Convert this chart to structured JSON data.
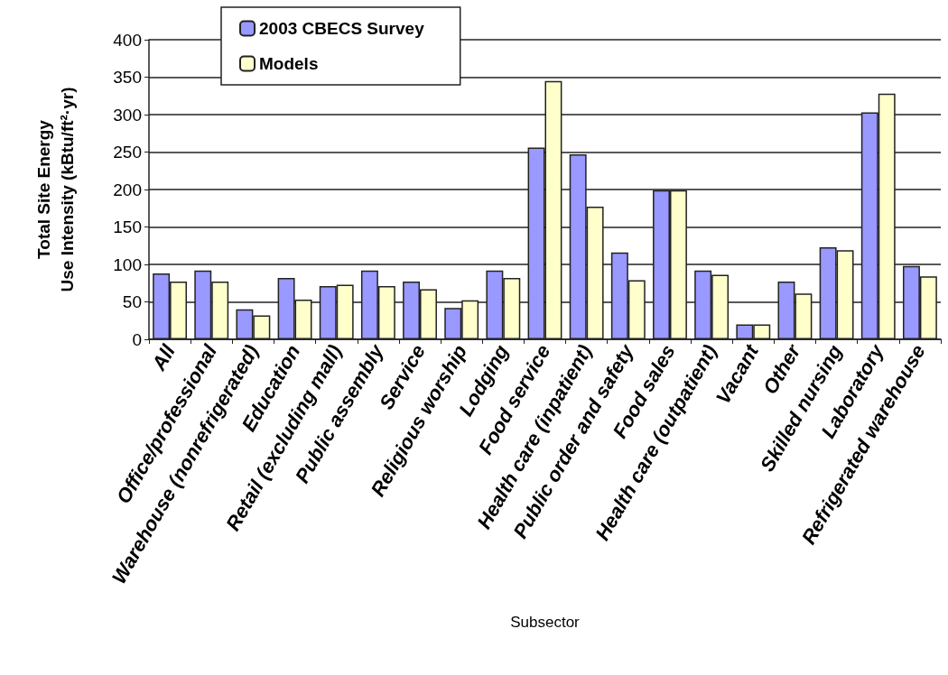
{
  "chart_data": {
    "type": "bar",
    "xlabel": "Subsector",
    "ylabel": "Total Site Energy\nUse Intensity (kBtu/ft²·yr)",
    "categories": [
      "All",
      "Office/professional",
      "Warehouse (nonrefrigerated)",
      "Education",
      "Retail (excluding mall)",
      "Public assembly",
      "Service",
      "Religious worship",
      "Lodging",
      "Food service",
      "Health care (inpatient)",
      "Public order and safety",
      "Food sales",
      "Health care (outpatient)",
      "Vacant",
      "Other",
      "Skilled nursing",
      "Laboratory",
      "Refrigerated warehouse"
    ],
    "series": [
      {
        "name": "2003 CBECS Survey",
        "color": "#9999ff",
        "values": [
          88,
          92,
          40,
          82,
          71,
          92,
          77,
          42,
          92,
          256,
          247,
          116,
          199,
          92,
          20,
          77,
          123,
          303,
          98
        ]
      },
      {
        "name": "Models",
        "color": "#ffffcc",
        "values": [
          77,
          77,
          32,
          53,
          73,
          71,
          67,
          52,
          82,
          345,
          177,
          79,
          199,
          86,
          20,
          61,
          119,
          328,
          84
        ]
      }
    ],
    "ylim": [
      0,
      400
    ],
    "yticks": [
      0,
      50,
      100,
      150,
      200,
      250,
      300,
      350,
      400
    ],
    "grid": "y",
    "legend": "top left"
  }
}
